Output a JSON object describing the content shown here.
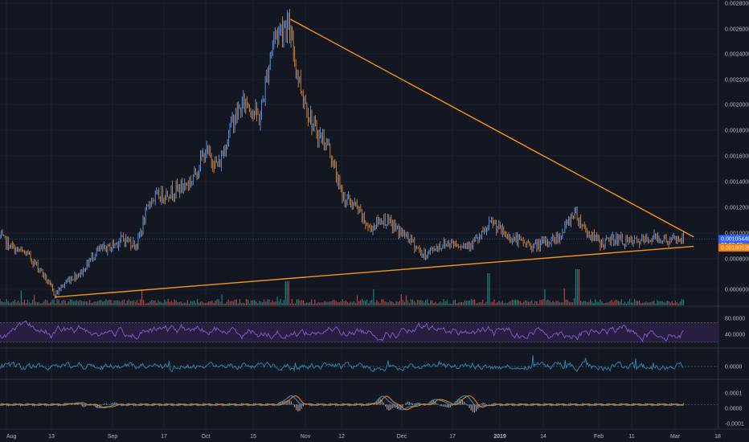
{
  "chart_data": {
    "type": "line",
    "title": "",
    "grid": true,
    "x_ticks": [
      "Aug",
      "13",
      "Sep",
      "17",
      "Oct",
      "15",
      "Nov",
      "12",
      "Dec",
      "17",
      "2019",
      "14",
      "Feb",
      "11",
      "Mar",
      "18"
    ],
    "price_panel": {
      "y_ticks": [
        "0.00280000",
        "0.00260000",
        "0.00240000",
        "0.00220000",
        "0.00200000",
        "0.00180000",
        "0.00160000",
        "0.00140000",
        "0.00120000",
        "0.00100000",
        "0.00080000",
        "0.00060000"
      ],
      "ylim": [
        0.00057,
        0.00282
      ],
      "price_series": {
        "x": [
          0,
          4,
          8,
          12,
          16,
          20,
          24,
          28,
          32,
          36,
          40,
          44,
          48,
          52,
          56,
          60,
          64,
          68,
          72,
          76,
          80,
          84,
          88,
          92,
          96,
          100,
          104,
          108,
          112,
          116,
          120,
          124,
          128,
          132,
          136,
          140,
          144,
          148,
          152,
          156,
          160,
          164,
          168,
          172,
          176,
          180,
          184,
          188,
          192,
          196,
          200
        ],
        "values": [
          0.00107,
          0.00098,
          0.00094,
          0.00082,
          0.00064,
          0.00075,
          0.00081,
          0.00096,
          0.00099,
          0.00106,
          0.00101,
          0.00135,
          0.00139,
          0.00143,
          0.00149,
          0.00171,
          0.0016,
          0.00194,
          0.00209,
          0.00195,
          0.00257,
          0.00268,
          0.00219,
          0.00187,
          0.00176,
          0.00138,
          0.0013,
          0.00113,
          0.00121,
          0.00113,
          0.00105,
          0.00093,
          0.001,
          0.00103,
          0.00101,
          0.00105,
          0.00118,
          0.00108,
          0.00104,
          0.001,
          0.00103,
          0.00108,
          0.00126,
          0.0011,
          0.00102,
          0.00106,
          0.00103,
          0.00104,
          0.00107,
          0.00104,
          0.00106
        ]
      },
      "trendline_upper": {
        "from": [
          85,
          0.0027
        ],
        "to": [
          203,
          0.00107
        ]
      },
      "trendline_lower": {
        "from": [
          16,
          0.00062
        ],
        "to": [
          203,
          0.001
        ]
      },
      "price_tags": [
        {
          "line1": "0.00105448",
          "line2": "03:56:26",
          "value": 0.00105448,
          "color": "#2962ff"
        },
        {
          "line1": "0.00100526",
          "line2": "",
          "value": 0.00100526,
          "color": "#f57c00"
        }
      ]
    },
    "rsi_panel": {
      "y_ticks": [
        "80.0000",
        "40.0000"
      ],
      "ylim": [
        20,
        100
      ],
      "upper": 70,
      "lower": 30
    },
    "cci_panel": {
      "y_ticks": [
        "0.0000"
      ]
    },
    "macd_panel": {
      "y_ticks": [
        "0.0001",
        "0.0000",
        "-0.0001"
      ],
      "ylim": [
        -0.00015,
        0.00015
      ]
    }
  },
  "colors": {
    "background": "#131722",
    "grid": "#1e2230",
    "candle_up": "#5b9cf6",
    "candle_down": "#e0832c",
    "trendline": "#f7931a",
    "volume_up": "#26a69a",
    "volume_down": "#ef5350",
    "rsi": "#7e57c2",
    "rsi_band": "#2b1f44",
    "cci": "#2a8bb7",
    "macd": "#2a8bd6",
    "signal": "#f57c00"
  }
}
